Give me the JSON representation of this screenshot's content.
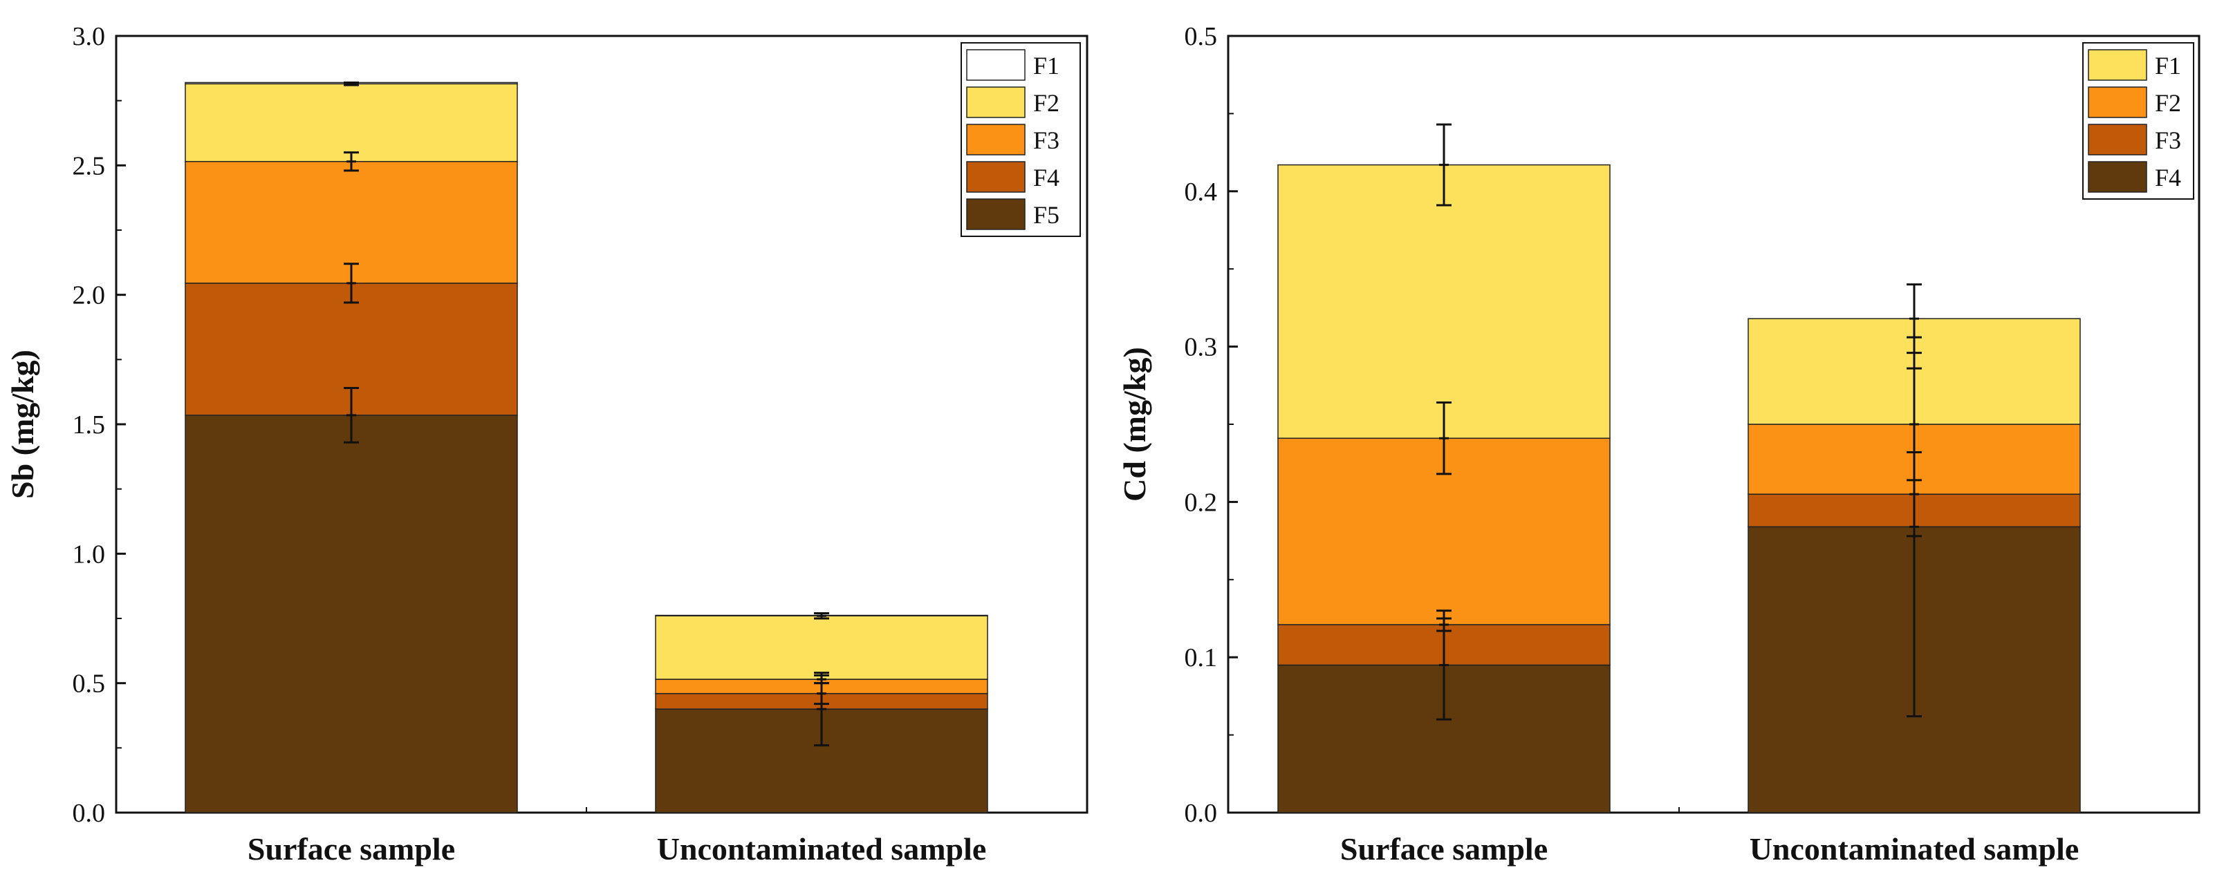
{
  "chart_data": [
    {
      "type": "bar",
      "stacked": true,
      "title": "",
      "xlabel": "",
      "ylabel": "Sb (mg/kg)",
      "ylim": [
        0,
        3.0
      ],
      "yticks": [
        "0.0",
        "0.5",
        "1.0",
        "1.5",
        "2.0",
        "2.5",
        "3.0"
      ],
      "categories": [
        "Surface sample",
        "Uncontaminated sample"
      ],
      "legend_position": "top-right",
      "series": [
        {
          "name": "F5",
          "color": "#603a0c",
          "values": [
            1.535,
            0.4
          ],
          "errors": [
            0.105,
            0.14
          ]
        },
        {
          "name": "F4",
          "color": "#c05a08",
          "values": [
            0.51,
            0.06
          ],
          "errors": [
            0.075,
            0.04
          ]
        },
        {
          "name": "F3",
          "color": "#fb9215",
          "values": [
            0.47,
            0.055
          ],
          "errors": [
            0.035,
            0.015
          ]
        },
        {
          "name": "F2",
          "color": "#fde15d",
          "values": [
            0.3,
            0.245
          ],
          "errors": [
            0.005,
            0.01
          ]
        },
        {
          "name": "F1",
          "color": "#ffffff",
          "values": [
            0.005,
            0.002
          ],
          "errors": [
            0,
            0
          ]
        }
      ]
    },
    {
      "type": "bar",
      "stacked": true,
      "title": "",
      "xlabel": "",
      "ylabel": "Cd (mg/kg)",
      "ylim": [
        0,
        0.5
      ],
      "yticks": [
        "0.0",
        "0.1",
        "0.2",
        "0.3",
        "0.4",
        "0.5"
      ],
      "categories": [
        "Surface sample",
        "Uncontaminated sample"
      ],
      "legend_position": "top-right",
      "series": [
        {
          "name": "F4",
          "color": "#603a0c",
          "values": [
            0.095,
            0.184
          ],
          "errors": [
            0.035,
            0.122
          ]
        },
        {
          "name": "F3",
          "color": "#c05a08",
          "values": [
            0.026,
            0.021
          ],
          "errors": [
            0.004,
            0.027
          ]
        },
        {
          "name": "F2",
          "color": "#fb9215",
          "values": [
            0.12,
            0.045
          ],
          "errors": [
            0.023,
            0.036
          ]
        },
        {
          "name": "F1",
          "color": "#fde15d",
          "values": [
            0.176,
            0.068
          ],
          "errors": [
            0.026,
            0.022
          ]
        }
      ]
    }
  ]
}
